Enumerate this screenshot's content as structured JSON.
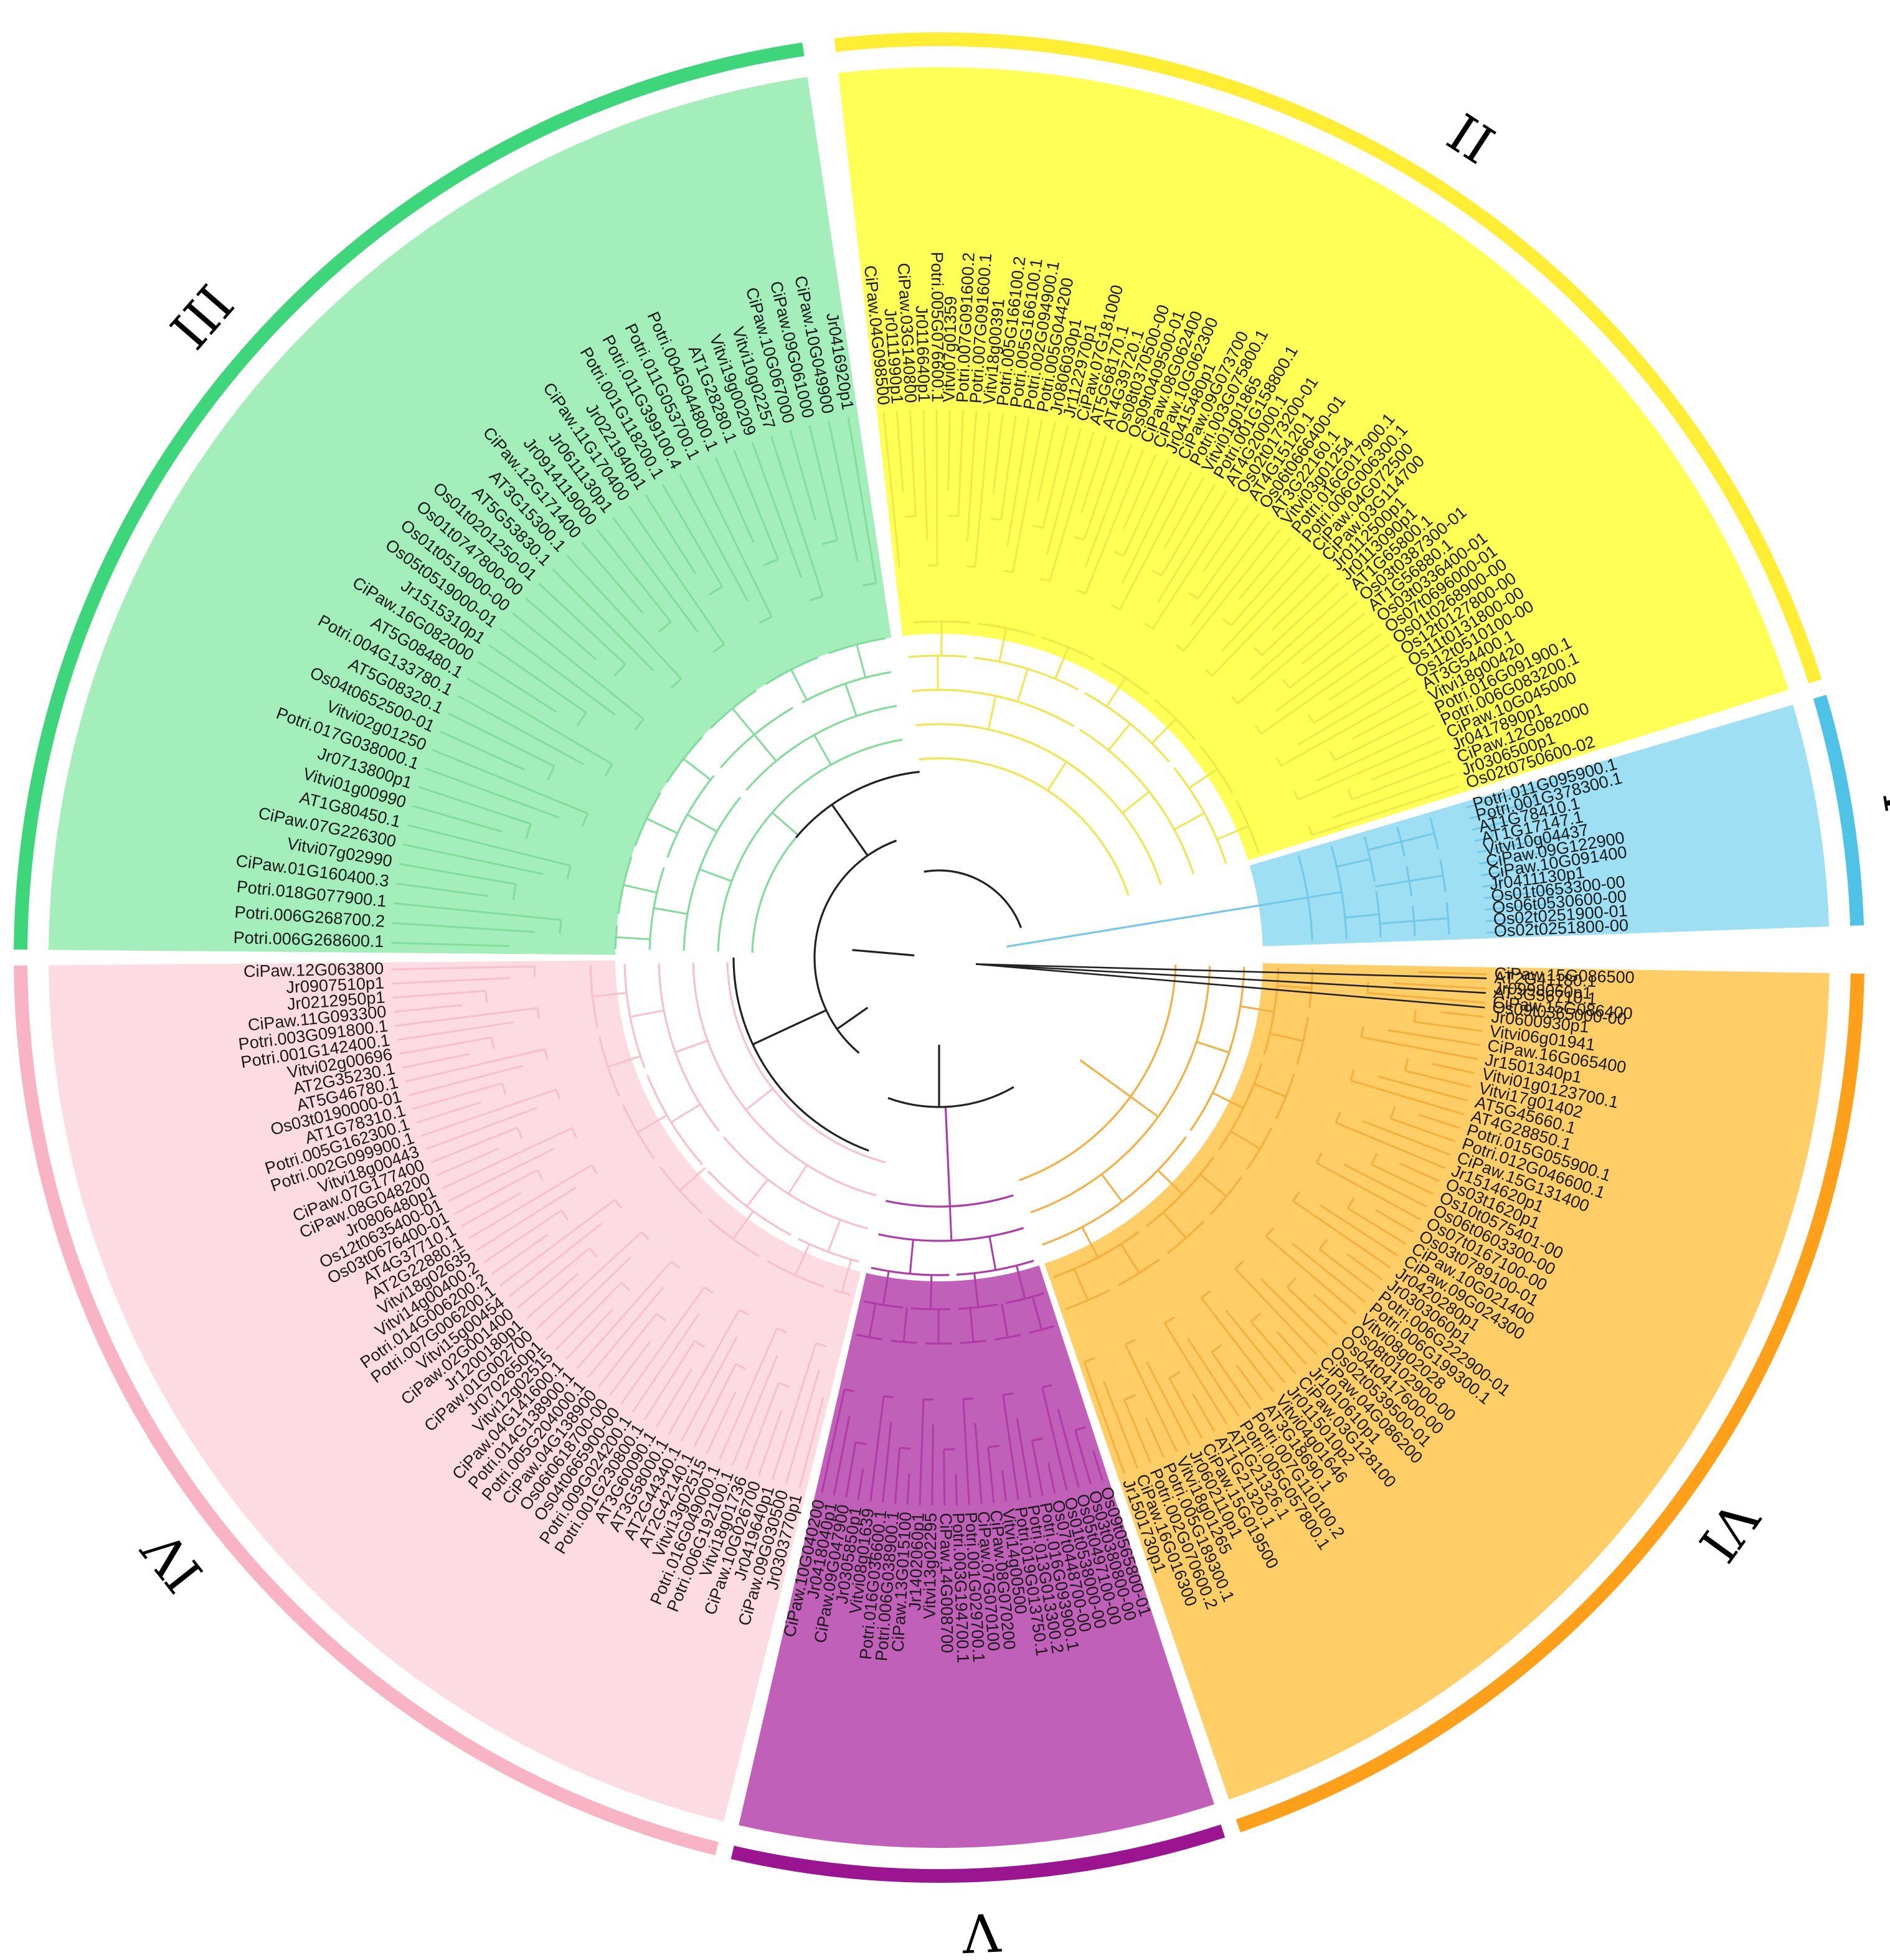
{
  "tree": {
    "clades": [
      {
        "id": "I",
        "label": "I",
        "color": "#4fc3e6",
        "fill": "#9edff3",
        "branch_color": "#74c9e8",
        "leaves": [
          "Os02t0251800-00",
          "Os02t0251900-01",
          "Os06t0530600-00",
          "Os01t0653300-00",
          "Jr0411130p1",
          "CiPaw.10G091400",
          "CiPaw.09G122900",
          "Vitvi10g04437",
          "AT1G17147.1",
          "AT1G78410.1",
          "Potri.001G378300.1",
          "Potri.011G095900.1"
        ]
      },
      {
        "id": "II",
        "label": "II",
        "color": "#ffee33",
        "fill": "#ffff55",
        "branch_color": "#f0e84a",
        "leaves": [
          "Os02t0750600-02",
          "Jr0306500p1",
          "CiPaw.12G082000",
          "Jr0417890p1",
          "CiPaw.10G045000",
          "Potri.006G083200.1",
          "Potri.016G091900.1",
          "Vitvi18g00420",
          "AT3G54400.1",
          "Os12t0510100-00",
          "Os11t0131800-00",
          "Os12t0127800-00",
          "Os01t0268900-00",
          "Os07t0696000-01",
          "Os03t0336400-01",
          "AT1G56880.1",
          "Os03t0387300-01",
          "AT1G65800.1",
          "Jr0113090p1",
          "Jr0112500p1",
          "CiPaw.03G114700",
          "CiPaw.04G072500",
          "Potri.006G006300.1",
          "Potri.016G017900.1",
          "Vitvi03g01254",
          "AT3G22160.1",
          "Os06t0666400-01",
          "AT4G15120.1",
          "Os02t0173200-01",
          "AT4G20000.1",
          "Potri.001G158800.1",
          "Vitvi01g01865",
          "Potri.003G075800.1",
          "CiPaw.09G073700",
          "Jr0415480p1",
          "CiPaw.10G062300",
          "CiPaw.08G062400",
          "Os09t0409500-01",
          "Os08t0370500-00",
          "AT4G39720.1",
          "AT5G68170.1",
          "CiPaw.07G181000",
          "Jr1122970p1",
          "Jr0806030p1",
          "Potri.005G044200",
          "Potri.002G094900.1",
          "Potri.005G166100.1",
          "Potri.005G166100.2",
          "Vitvi18g00391",
          "Potri.007G091600.1",
          "Potri.007G091600.2",
          "Vitvi07g01359",
          "Potri.005G076600.1",
          "Jr0116640p1",
          "CiPaw.03G140800",
          "Jr0111990p1",
          "CiPaw.04G098500"
        ]
      },
      {
        "id": "III",
        "label": "III",
        "color": "#3dd67a",
        "fill": "#a3eeba",
        "branch_color": "#82dd9c",
        "leaves": [
          "Jr0416920p1",
          "CiPaw.10G049900",
          "CiPaw.09G061000",
          "CiPaw.10G067000",
          "Vitvi10g02257",
          "Vitvi19g00209",
          "AT1G28280.1",
          "Potri.004G044800.1",
          "Potri.011G053700.1",
          "Potri.011G399100.4",
          "Potri.001G118200.1",
          "Jr0221940p1",
          "CiPaw.11G170400",
          "Jr0611130p1",
          "Jr0914119000",
          "CiPaw.12G171400",
          "AT3G15300.1",
          "AT5G53830.1",
          "Os01t0201250-01",
          "Os01t0747800-00",
          "Os01t0519000-00",
          "Os05t0519000-01",
          "Jr1515310p1",
          "CiPaw.16G082000",
          "AT5G08480.1",
          "Potri.004G133780.1",
          "AT5G08320.1",
          "Os04t0652500-01",
          "Vitvi02g01250",
          "Potri.017G038000.1",
          "Jr0713800p1",
          "Vitvi01g00990",
          "AT1G80450.1",
          "CiPaw.07G226300",
          "Vitvi07g02990",
          "CiPaw.01G160400.3",
          "Potri.018G077900.1",
          "Potri.006G268700.2",
          "Potri.006G268600.1"
        ]
      },
      {
        "id": "IV",
        "label": "IV",
        "color": "#f8b4c5",
        "fill": "#fddbe2",
        "branch_color": "#f7c0cf",
        "leaves": [
          "CiPaw.12G063800",
          "Jr0907510p1",
          "Jr0212950p1",
          "CiPaw.11G093300",
          "Potri.003G091800.1",
          "Potri.001G142400.1",
          "Vitvi02g00696",
          "AT2G35230.1",
          "AT5G46780.1",
          "Os03t0190000-01",
          "AT1G78310.1",
          "Potri.005G162300.1",
          "Potri.002G099900.1",
          "Vitvi18g00443",
          "CiPaw.07G177400",
          "CiPaw.08G048200",
          "Jr0806480p1",
          "Os12t0635400-01",
          "Os03t0676400-01",
          "AT4G37710.1",
          "AT2G22880.1",
          "Vitvi18g02635",
          "Vitvi14g00400.2",
          "Potri.014G006200.2",
          "Potri.007G006200.1",
          "Vitvi15g00454",
          "CiPaw.02G001400",
          "Jr1200180p1",
          "CiPaw.01G002700",
          "Jr0702650p1",
          "Vitvi12g02515",
          "CiPaw.04G141600.1",
          "Potri.014G138900.1",
          "Potri.005G204000.1",
          "CiPaw.04G138900",
          "Os06t0618700-00",
          "Os04t0665900-00",
          "Potri.009G024200.1",
          "Potri.001G230800.1",
          "AT3G60090.1",
          "AT3G58000.1",
          "AT2G44340.1",
          "AT2G42140.1",
          "Vitvi13g02515",
          "Potri.016G049000.1",
          "Potri.006G192100.1",
          "Vitvi18g01736",
          "CiPaw.10G026700",
          "Jr0419640p1",
          "CiPaw.09G030500",
          "Jr0303770p1"
        ]
      },
      {
        "id": "V",
        "label": "V",
        "color": "#9b1590",
        "fill": "#c060b8",
        "branch_color": "#b03aa8",
        "leaves": [
          "CiPaw.10G040200",
          "Jr0418040p1",
          "CiPaw.09G047900",
          "Jr0305850p1",
          "Vitvi08g01639",
          "Potri.016G036600.1",
          "Potri.006G038900.1",
          "CiPaw.13G015100",
          "Jr1402060p1",
          "Vitvi13g02295",
          "CiPaw.14G008700",
          "Potri.003G194700.1",
          "Potri.001G029700.1",
          "CiPaw.07G070100",
          "CiPaw.08G070200",
          "Vitvi14g00500",
          "Potri.019G013750.1",
          "Potri.013G013300.2",
          "Potri.016G093900.1",
          "Os07t0448700-00",
          "Os01t0538000-00",
          "Os05t0497100-00",
          "Os03t0380800-00",
          "Os09t0565800-01"
        ]
      },
      {
        "id": "VI",
        "label": "VI",
        "color": "#ffa01a",
        "fill": "#ffce66",
        "branch_color": "#f5b040",
        "leaves": [
          "Jr1501730p1",
          "CiPaw.16G016300",
          "Potri.002G070600.2",
          "Potri.005G189300.1",
          "Vitvi18g01265",
          "Jr0602110p1",
          "CiPaw.15G019500",
          "AT1G21320.1",
          "AT1G21326.1",
          "Potri.005G057800.1",
          "Potri.007G110100.2",
          "AT3G18690.1",
          "Vitvi04g01646",
          "Jr0115010p2",
          "CiPaw.03G128100",
          "Jr1010610p1",
          "CiPaw.04G086200",
          "Os02t0539500-01",
          "Os04t0417600-00",
          "Os08t0102900-00",
          "Vitvi08g02028",
          "Potri.006G199300.1",
          "Potri.006G222900-01",
          "Jr0303060p1",
          "Jr0420280p1",
          "CiPaw.09G024300",
          "CiPaw.10G021400",
          "Os03t0789100-01",
          "Os07t0167100-00",
          "Os06t0603300-00",
          "Os10t0575401-00",
          "Os03t1620p1",
          "Jr1514620p1",
          "CiPaw.15G131400",
          "Potri.012G046600.1",
          "Potri.015G055900.1",
          "AT4G28850.1",
          "AT5G45660.1",
          "Vitvi17g01402",
          "Vitvi01g0123700.1",
          "Jr1501340p1",
          "CiPaw.16G065400",
          "Vitvi06g01941",
          "Jr0600930p1",
          "CiPaw.15G086400",
          "Jr0998060p1",
          "CiPaw.15G086500"
        ]
      }
    ],
    "outgroup": {
      "branch_color": "#222222",
      "leaves": [
        "AT2G41180.1",
        "AT3G56710.1",
        "Os09t0365000-00"
      ]
    }
  }
}
